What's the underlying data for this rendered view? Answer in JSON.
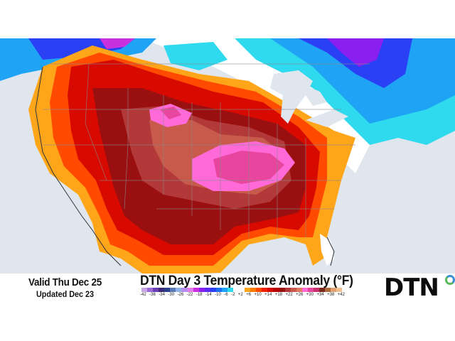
{
  "map": {
    "title": "DTN Day 3 Temperature Anomaly (°F)",
    "valid_label": "Valid Thu Dec 25",
    "updated_label": "Updated Dec 23",
    "region": "Contiguous United States, southern Canada, northern Mexico",
    "highlights": {
      "warmest": "Central Plains / Mid-Mississippi Valley (pink +26 to +34)",
      "secondary_warm": "Wyoming / northern Colorado (pink)",
      "coldest": "Quebec / Ontario (blue to purple, -14 to -30)",
      "near_normal": "Florida peninsula, western Washington coast, Mid-Atlantic coast (white)"
    }
  },
  "legend": {
    "unit": "°F",
    "ticks": [
      "-42",
      "-38",
      "-34",
      "-30",
      "-26",
      "-22",
      "-18",
      "-14",
      "-10",
      "-6",
      "-2",
      "+2",
      "+6",
      "+10",
      "+14",
      "+18",
      "+22",
      "+26",
      "+30",
      "+34",
      "+38",
      "+42"
    ],
    "colors": [
      "#c9a3e8",
      "#9b6ad6",
      "#6a3fb5",
      "#3b2a7a",
      "#2c3e8f",
      "#5a7ab8",
      "#8fb3e3",
      "#b78ff0",
      "#e07de8",
      "#c830e0",
      "#8a20f0",
      "#5b2cf5",
      "#2a40f5",
      "#1e6ef5",
      "#1ea3f5",
      "#2fd9ee",
      "#ffffff",
      "#ffffff",
      "#ffa51a",
      "#ff7a00",
      "#ff4a00",
      "#f22000",
      "#d80a00",
      "#b80000",
      "#9a1010",
      "#b3383a",
      "#c75a4a",
      "#e07a60",
      "#ff6ad8",
      "#e8459e",
      "#c8306e",
      "#7a2a1a",
      "#b06a3a",
      "#e0a070",
      "#f0c090"
    ]
  },
  "brand": {
    "logo_text": "DTN",
    "accent_blue": "#3d8fd6",
    "accent_green": "#5cb85c"
  }
}
